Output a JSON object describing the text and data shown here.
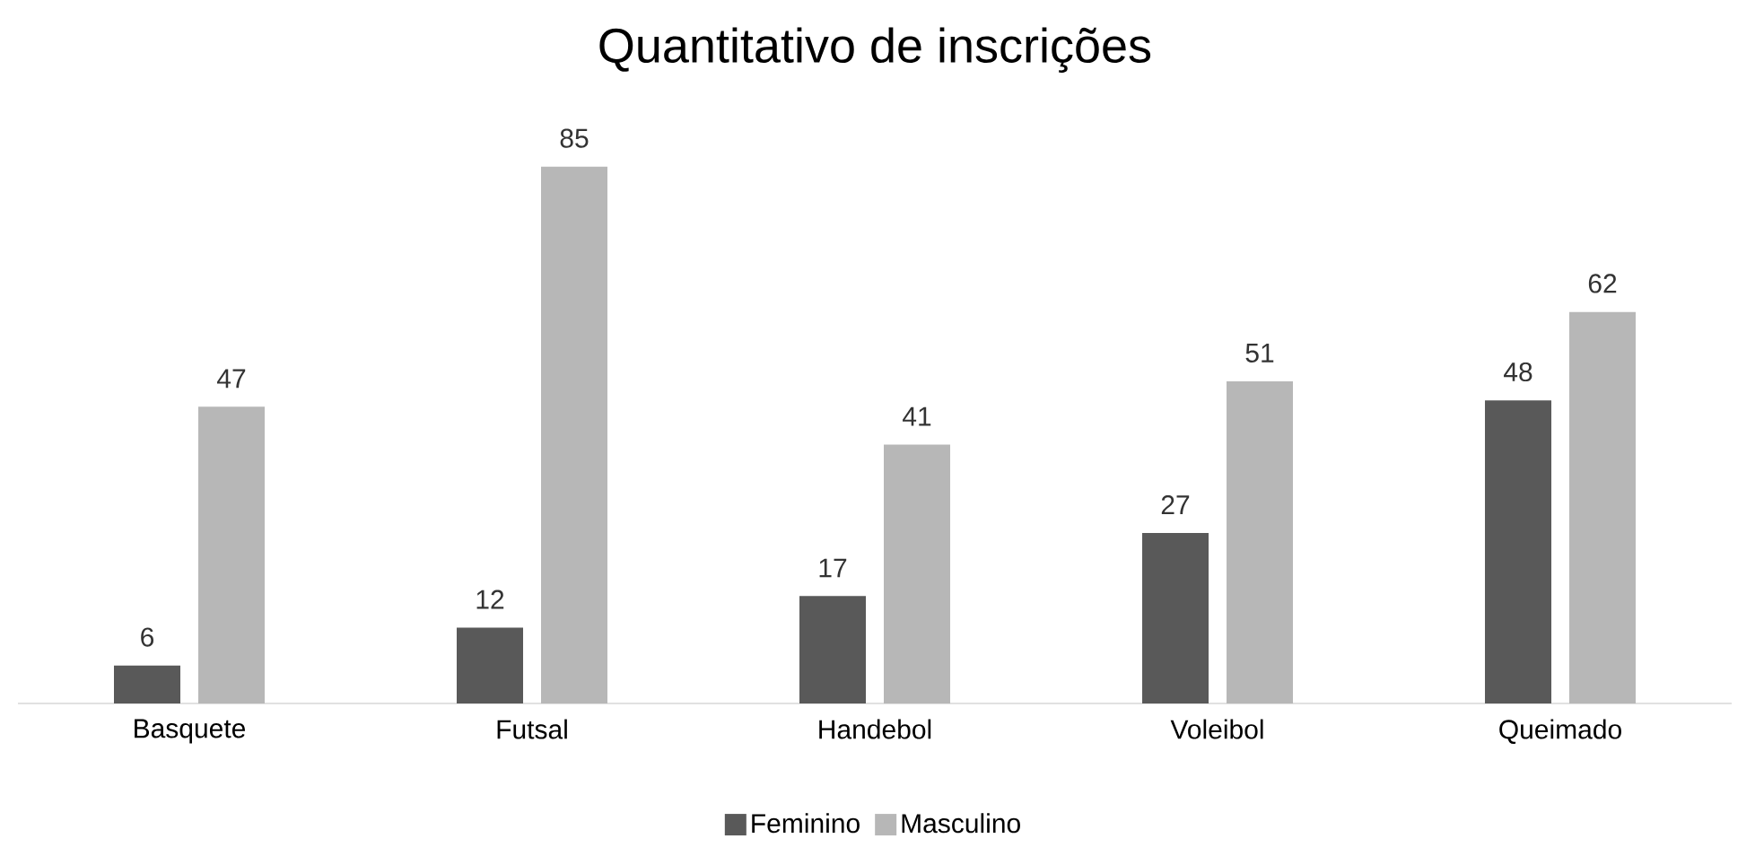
{
  "chart_data": {
    "type": "bar",
    "title": "Quantitativo de inscrições",
    "categories": [
      "Basquete",
      "Futsal",
      "Handebol",
      "Voleibol",
      "Queimado"
    ],
    "series": [
      {
        "name": "Feminino",
        "color": "#595959",
        "values": [
          6,
          12,
          17,
          27,
          48
        ]
      },
      {
        "name": "Masculino",
        "color": "#b7b7b7",
        "values": [
          47,
          85,
          41,
          51,
          62
        ]
      }
    ],
    "data_labels": true,
    "legend": "bottom"
  }
}
